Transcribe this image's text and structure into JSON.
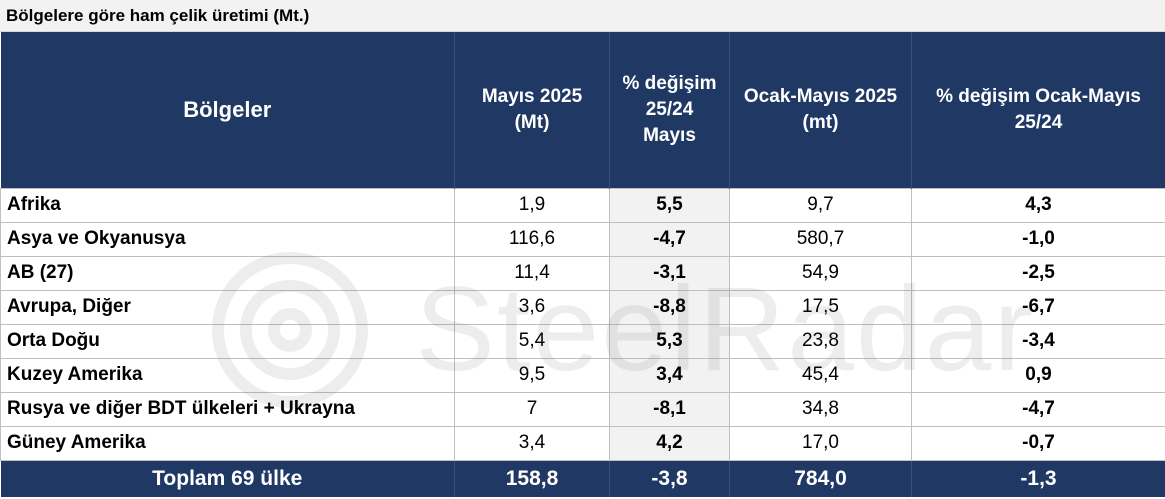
{
  "caption": "Bölgelere göre ham çelik üretimi (Mt.)",
  "columns": {
    "region": "Bölgeler",
    "may_line1": "Mayıs 2025",
    "may_line2": "(Mt)",
    "pct_may_line1": "% değişim",
    "pct_may_line2": "25/24",
    "pct_may_line3": "Mayıs",
    "ytd_line1": "Ocak-Mayıs 2025",
    "ytd_line2": "(mt)",
    "pct_ytd_line1": "% değişim Ocak-Mayıs",
    "pct_ytd_line2": "25/24"
  },
  "rows": [
    {
      "region": "Afrika",
      "may": "1,9",
      "pct_may": "5,5",
      "ytd": "9,7",
      "pct_ytd": "4,3"
    },
    {
      "region": "Asya ve Okyanusya",
      "may": "116,6",
      "pct_may": "-4,7",
      "ytd": "580,7",
      "pct_ytd": "-1,0"
    },
    {
      "region": "AB (27)",
      "may": "11,4",
      "pct_may": "-3,1",
      "ytd": "54,9",
      "pct_ytd": "-2,5"
    },
    {
      "region": "Avrupa, Diğer",
      "may": "3,6",
      "pct_may": "-8,8",
      "ytd": "17,5",
      "pct_ytd": "-6,7"
    },
    {
      "region": "Orta Doğu",
      "may": "5,4",
      "pct_may": "5,3",
      "ytd": "23,8",
      "pct_ytd": "-3,4"
    },
    {
      "region": "Kuzey Amerika",
      "may": "9,5",
      "pct_may": "3,4",
      "ytd": "45,4",
      "pct_ytd": "0,9"
    },
    {
      "region": "Rusya ve diğer BDT ülkeleri + Ukrayna",
      "may": "7",
      "pct_may": "-8,1",
      "ytd": "34,8",
      "pct_ytd": "-4,7"
    },
    {
      "region": "Güney Amerika",
      "may": "3,4",
      "pct_may": "4,2",
      "ytd": "17,0",
      "pct_ytd": "-0,7"
    }
  ],
  "total": {
    "label": "Toplam 69 ülke",
    "may": "158,8",
    "pct_may": "-3,8",
    "ytd": "784,0",
    "pct_ytd": "-1,3"
  },
  "watermark": "SteelRadar",
  "colors": {
    "header_bg": "#1f3864",
    "shade": "#f2f2f2",
    "border": "#bfbfbf"
  }
}
